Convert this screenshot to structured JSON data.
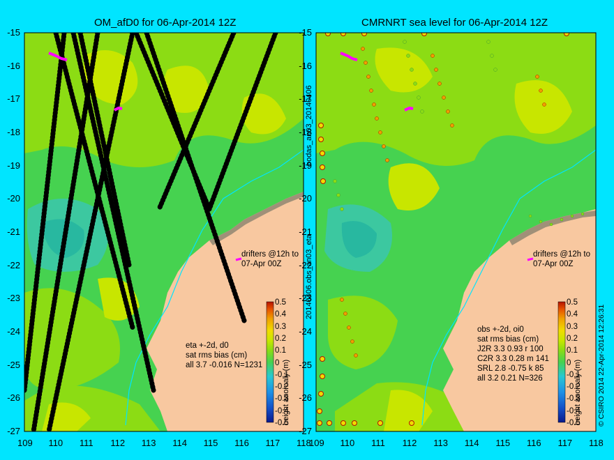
{
  "left_panel": {
    "title": "OM_afD0 for 06-Apr-2014 12Z",
    "drifters_label": [
      "drifters @12h to",
      "07-Apr 00Z"
    ],
    "stats": [
      "eta +-2d, d0",
      "sat rms bias (cm)",
      "all 3.7 -0.016 N=1231"
    ],
    "colorbar_label": "height anomaly (m)"
  },
  "right_panel": {
    "title": "CMRNRT sea level  for 06-Apr-2014 12Z",
    "drifters_label": [
      "drifters @12h to",
      "07-Apr 00Z"
    ],
    "stats": [
      "obs +-2d, oi0",
      "sat rms bias (cm)",
      "J2R   3.3 0.93 r 100",
      "C2R   3.3 0.28 m 141",
      "SRL    2.8 -0.75 k 85",
      "all   3.2 0.21 N=326"
    ],
    "colorbar_label": "height anomaly (m)"
  },
  "between_labels": {
    "top": "bodas_an03_20140406",
    "bottom": "20140406.obs_an03_eta"
  },
  "credit": "© CSIRO 2014    22-Apr-2014 12:26:31",
  "axes": {
    "x_ticks": [
      "109",
      "110",
      "111",
      "112",
      "113",
      "114",
      "115",
      "116",
      "117",
      "118"
    ],
    "y_ticks": [
      "-15",
      "-16",
      "-17",
      "-18",
      "-19",
      "-20",
      "-21",
      "-22",
      "-23",
      "-24",
      "-25",
      "-26",
      "-27"
    ],
    "xlim": [
      109,
      118
    ],
    "ylim": [
      -27,
      -15
    ]
  },
  "colorbar": {
    "ticks": [
      "0.5",
      "0.4",
      "0.3",
      "0.2",
      "0.1",
      "0",
      "-0.1",
      "-0.2",
      "-0.3",
      "-0.4",
      "-0.5"
    ],
    "range": [
      -0.5,
      0.5
    ],
    "colors": [
      "#0a1a8c",
      "#1450c8",
      "#1e90e6",
      "#28c8d2",
      "#3cd2a0",
      "#46d250",
      "#8cdc14",
      "#c8e600",
      "#f0dc00",
      "#f0a000",
      "#e65000",
      "#b41400"
    ]
  },
  "colors": {
    "background": "#00e5ff",
    "land": "#f8c8a0",
    "coast_shelf": "#a09078",
    "ocean_green": "#46d250",
    "ocean_light": "#8cdc14",
    "yellow_patch": "#c8e600",
    "teal_patch": "#3cc8a0",
    "drifter": "#ff00ff",
    "river": "#00e5ff"
  }
}
